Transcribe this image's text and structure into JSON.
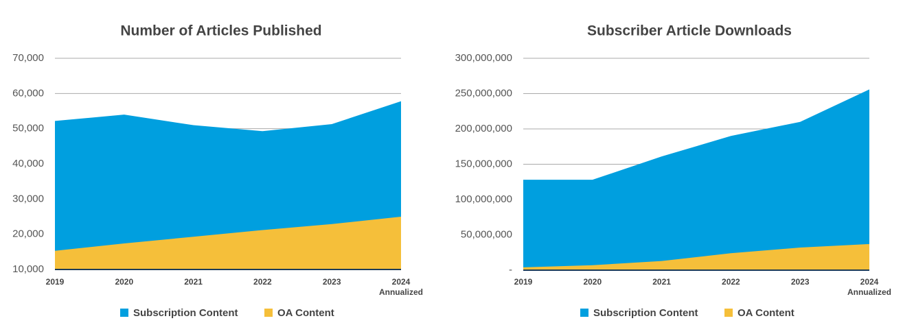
{
  "chart_data": [
    {
      "type": "area",
      "title": "Number of Articles Published",
      "categories": [
        "2019",
        "2020",
        "2021",
        "2022",
        "2023",
        "2024\nAnnualized"
      ],
      "series": [
        {
          "name": "Subscription Content",
          "color": "#009fdf",
          "values": [
            52200,
            54000,
            51000,
            49300,
            51300,
            57800
          ]
        },
        {
          "name": "OA Content",
          "color": "#f5bf3a",
          "values": [
            15300,
            17400,
            19300,
            21200,
            22900,
            25000
          ]
        }
      ],
      "ylim": [
        10000,
        70000
      ],
      "yticks": [
        {
          "value": 10000,
          "label": "10,000"
        },
        {
          "value": 20000,
          "label": "20,000"
        },
        {
          "value": 30000,
          "label": "30,000"
        },
        {
          "value": 40000,
          "label": "40,000"
        },
        {
          "value": 50000,
          "label": "50,000"
        },
        {
          "value": 60000,
          "label": "60,000"
        },
        {
          "value": 70000,
          "label": "70,000"
        }
      ],
      "grid": true,
      "legend": "bottom"
    },
    {
      "type": "area",
      "title": "Subscriber Article Downloads",
      "categories": [
        "2019",
        "2020",
        "2021",
        "2022",
        "2023",
        "2024\nAnnualized"
      ],
      "series": [
        {
          "name": "Subscription Content",
          "color": "#009fdf",
          "values": [
            128000000,
            128000000,
            161000000,
            190000000,
            210000000,
            256000000
          ]
        },
        {
          "name": "OA Content",
          "color": "#f5bf3a",
          "values": [
            4000000,
            7000000,
            13000000,
            24000000,
            32000000,
            37000000
          ]
        }
      ],
      "ylim": [
        0,
        300000000
      ],
      "yticks": [
        {
          "value": 0,
          "label": "-"
        },
        {
          "value": 50000000,
          "label": "50,000,000"
        },
        {
          "value": 100000000,
          "label": "100,000,000"
        },
        {
          "value": 150000000,
          "label": "150,000,000"
        },
        {
          "value": 200000000,
          "label": "200,000,000"
        },
        {
          "value": 250000000,
          "label": "250,000,000"
        },
        {
          "value": 300000000,
          "label": "300,000,000"
        }
      ],
      "grid": true,
      "legend": "bottom"
    }
  ]
}
